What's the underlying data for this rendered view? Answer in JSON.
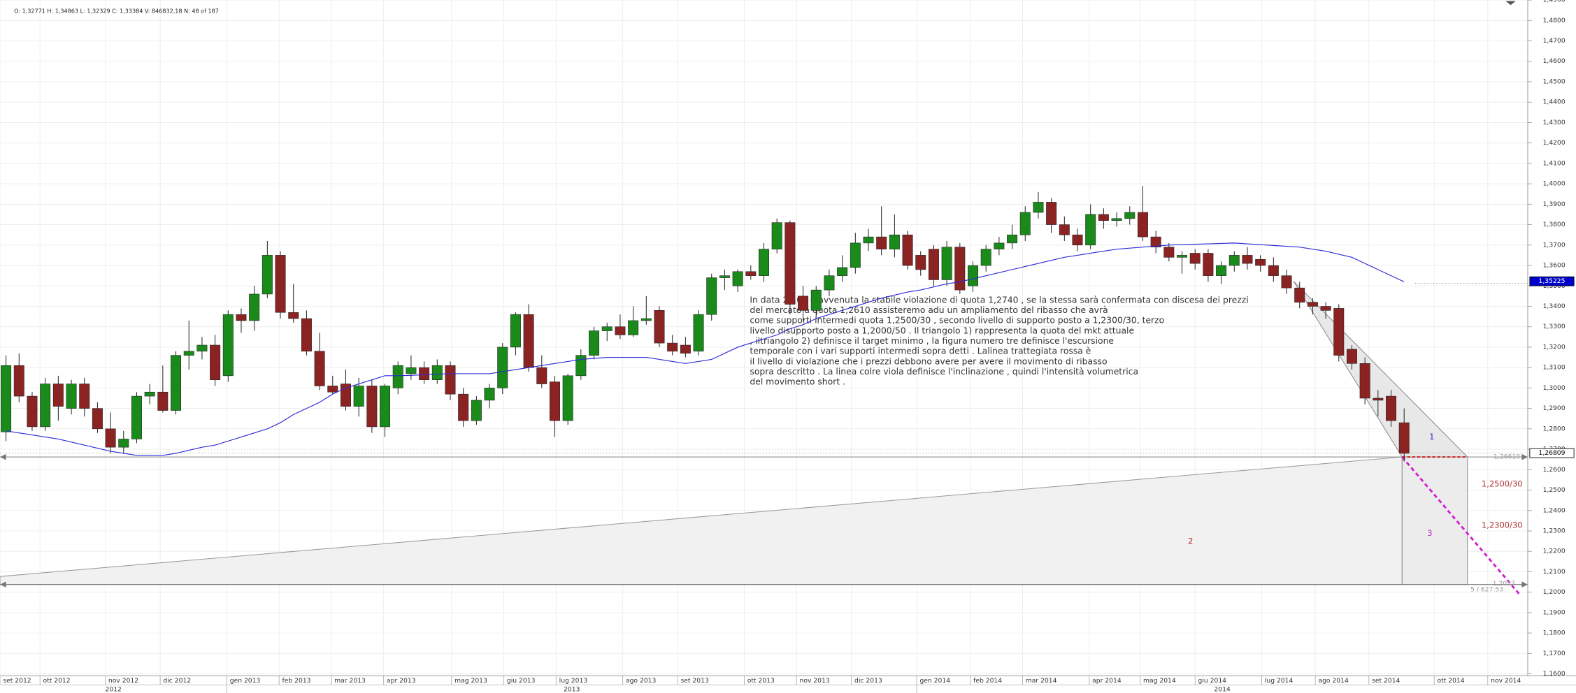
{
  "chart_data": {
    "type": "candlestick",
    "header": "O: 1,32771  H: 1,34863  L: 1,32329  C: 1,33384  V: 846832,18  N: 48 of 187",
    "up_color": "#1a8a1a",
    "down_color": "#8b2323",
    "grid": true,
    "ylim": [
      1.159,
      1.49
    ],
    "yticks": [
      {
        "value": 1.16,
        "label": "1,1600"
      },
      {
        "value": 1.17,
        "label": "1,1700"
      },
      {
        "value": 1.18,
        "label": "1,1800"
      },
      {
        "value": 1.19,
        "label": "1,1900"
      },
      {
        "value": 1.2,
        "label": "1,2000"
      },
      {
        "value": 1.21,
        "label": "1,2100"
      },
      {
        "value": 1.22,
        "label": "1,2200"
      },
      {
        "value": 1.23,
        "label": "1,2300"
      },
      {
        "value": 1.24,
        "label": "1,2400"
      },
      {
        "value": 1.25,
        "label": "1,2500"
      },
      {
        "value": 1.26,
        "label": "1,2600"
      },
      {
        "value": 1.27,
        "label": "1,2700"
      },
      {
        "value": 1.28,
        "label": "1,2800"
      },
      {
        "value": 1.29,
        "label": "1,2900"
      },
      {
        "value": 1.3,
        "label": "1,3000"
      },
      {
        "value": 1.31,
        "label": "1,3100"
      },
      {
        "value": 1.32,
        "label": "1,3200"
      },
      {
        "value": 1.33,
        "label": "1,3300"
      },
      {
        "value": 1.34,
        "label": "1,3400"
      },
      {
        "value": 1.35,
        "label": "1,3500"
      },
      {
        "value": 1.36,
        "label": "1,3600"
      },
      {
        "value": 1.37,
        "label": "1,3700"
      },
      {
        "value": 1.38,
        "label": "1,3800"
      },
      {
        "value": 1.39,
        "label": "1,3900"
      },
      {
        "value": 1.4,
        "label": "1,4000"
      },
      {
        "value": 1.41,
        "label": "1,4100"
      },
      {
        "value": 1.42,
        "label": "1,4200"
      },
      {
        "value": 1.43,
        "label": "1,4300"
      },
      {
        "value": 1.44,
        "label": "1,4400"
      },
      {
        "value": 1.45,
        "label": "1,4500"
      },
      {
        "value": 1.46,
        "label": "1,4600"
      },
      {
        "value": 1.47,
        "label": "1,4700"
      },
      {
        "value": 1.48,
        "label": "1,4800"
      },
      {
        "value": 1.49,
        "label": "1,4900"
      }
    ],
    "xlim": [
      -0.46,
      116.46
    ],
    "xticks": [
      {
        "value": -0.46,
        "label": "set 2012"
      },
      {
        "value": 2.6,
        "label": "ott 2012"
      },
      {
        "value": 7.6,
        "label": "nov 2012"
      },
      {
        "value": 11.8,
        "label": "dic 2012"
      },
      {
        "value": 16.9,
        "label": "gen 2013"
      },
      {
        "value": 20.9,
        "label": "feb 2013"
      },
      {
        "value": 24.9,
        "label": "mar 2013"
      },
      {
        "value": 28.9,
        "label": "apr 2013"
      },
      {
        "value": 34.1,
        "label": "mag 2013"
      },
      {
        "value": 38.1,
        "label": "giu 2013"
      },
      {
        "value": 42.1,
        "label": "lug 2013"
      },
      {
        "value": 47.2,
        "label": "ago 2013"
      },
      {
        "value": 51.4,
        "label": "set 2013"
      },
      {
        "value": 56.5,
        "label": "ott 2013"
      },
      {
        "value": 60.5,
        "label": "nov 2013"
      },
      {
        "value": 64.7,
        "label": "dic 2013"
      },
      {
        "value": 69.7,
        "label": "gen 2014"
      },
      {
        "value": 73.8,
        "label": "feb 2014"
      },
      {
        "value": 77.8,
        "label": "mar 2014"
      },
      {
        "value": 82.9,
        "label": "apr 2014"
      },
      {
        "value": 86.8,
        "label": "mag 2014"
      },
      {
        "value": 91,
        "label": "giu 2014"
      },
      {
        "value": 96.1,
        "label": "lug 2014"
      },
      {
        "value": 100.2,
        "label": "ago 2014"
      },
      {
        "value": 104.3,
        "label": "set 2014"
      },
      {
        "value": 109.3,
        "label": "ott 2014"
      },
      {
        "value": 113.4,
        "label": "nov 2014"
      }
    ],
    "year_labels": [
      "2012",
      "2013",
      "2014"
    ],
    "ohlc": [
      [
        1.2785,
        1.316,
        1.274,
        1.311
      ],
      [
        1.311,
        1.317,
        1.293,
        1.296
      ],
      [
        1.296,
        1.298,
        1.279,
        1.281
      ],
      [
        1.281,
        1.305,
        1.279,
        1.302
      ],
      [
        1.302,
        1.306,
        1.284,
        1.291
      ],
      [
        1.29,
        1.304,
        1.287,
        1.302
      ],
      [
        1.302,
        1.305,
        1.286,
        1.29
      ],
      [
        1.29,
        1.293,
        1.278,
        1.28
      ],
      [
        1.28,
        1.288,
        1.268,
        1.271
      ],
      [
        1.271,
        1.279,
        1.268,
        1.275
      ],
      [
        1.275,
        1.298,
        1.273,
        1.296
      ],
      [
        1.296,
        1.302,
        1.292,
        1.298
      ],
      [
        1.298,
        1.311,
        1.288,
        1.289
      ],
      [
        1.289,
        1.318,
        1.287,
        1.316
      ],
      [
        1.316,
        1.333,
        1.309,
        1.318
      ],
      [
        1.318,
        1.325,
        1.314,
        1.321
      ],
      [
        1.321,
        1.326,
        1.301,
        1.304
      ],
      [
        1.306,
        1.338,
        1.303,
        1.336
      ],
      [
        1.336,
        1.339,
        1.327,
        1.333
      ],
      [
        1.333,
        1.35,
        1.328,
        1.346
      ],
      [
        1.346,
        1.372,
        1.344,
        1.365
      ],
      [
        1.365,
        1.367,
        1.334,
        1.337
      ],
      [
        1.337,
        1.351,
        1.332,
        1.334
      ],
      [
        1.334,
        1.338,
        1.316,
        1.318
      ],
      [
        1.318,
        1.327,
        1.299,
        1.301
      ],
      [
        1.301,
        1.306,
        1.297,
        1.298
      ],
      [
        1.302,
        1.309,
        1.289,
        1.291
      ],
      [
        1.291,
        1.305,
        1.286,
        1.301
      ],
      [
        1.301,
        1.304,
        1.278,
        1.281
      ],
      [
        1.281,
        1.302,
        1.276,
        1.301
      ],
      [
        1.3,
        1.313,
        1.297,
        1.311
      ],
      [
        1.307,
        1.316,
        1.304,
        1.31
      ],
      [
        1.31,
        1.313,
        1.302,
        1.304
      ],
      [
        1.304,
        1.314,
        1.302,
        1.311
      ],
      [
        1.311,
        1.313,
        1.294,
        1.297
      ],
      [
        1.297,
        1.3,
        1.281,
        1.284
      ],
      [
        1.284,
        1.296,
        1.282,
        1.294
      ],
      [
        1.294,
        1.302,
        1.29,
        1.3
      ],
      [
        1.3,
        1.322,
        1.297,
        1.32
      ],
      [
        1.32,
        1.337,
        1.316,
        1.336
      ],
      [
        1.336,
        1.341,
        1.308,
        1.31
      ],
      [
        1.31,
        1.316,
        1.3,
        1.302
      ],
      [
        1.303,
        1.306,
        1.276,
        1.284
      ],
      [
        1.284,
        1.307,
        1.282,
        1.306
      ],
      [
        1.306,
        1.319,
        1.304,
        1.316
      ],
      [
        1.316,
        1.33,
        1.314,
        1.328
      ],
      [
        1.328,
        1.332,
        1.323,
        1.33
      ],
      [
        1.33,
        1.336,
        1.324,
        1.326
      ],
      [
        1.326,
        1.34,
        1.325,
        1.333
      ],
      [
        1.333,
        1.345,
        1.331,
        1.334
      ],
      [
        1.338,
        1.34,
        1.32,
        1.322
      ],
      [
        1.322,
        1.326,
        1.316,
        1.318
      ],
      [
        1.321,
        1.325,
        1.315,
        1.317
      ],
      [
        1.318,
        1.338,
        1.316,
        1.336
      ],
      [
        1.336,
        1.356,
        1.333,
        1.354
      ],
      [
        1.354,
        1.358,
        1.348,
        1.355
      ],
      [
        1.35,
        1.358,
        1.347,
        1.357
      ],
      [
        1.357,
        1.36,
        1.353,
        1.355
      ],
      [
        1.355,
        1.371,
        1.352,
        1.368
      ],
      [
        1.368,
        1.383,
        1.366,
        1.381
      ],
      [
        1.381,
        1.382,
        1.336,
        1.341
      ],
      [
        1.345,
        1.35,
        1.333,
        1.338
      ],
      [
        1.338,
        1.35,
        1.334,
        1.348
      ],
      [
        1.348,
        1.358,
        1.345,
        1.355
      ],
      [
        1.355,
        1.365,
        1.352,
        1.359
      ],
      [
        1.359,
        1.376,
        1.356,
        1.371
      ],
      [
        1.371,
        1.378,
        1.367,
        1.374
      ],
      [
        1.374,
        1.389,
        1.365,
        1.368
      ],
      [
        1.368,
        1.385,
        1.364,
        1.375
      ],
      [
        1.375,
        1.377,
        1.358,
        1.36
      ],
      [
        1.365,
        1.367,
        1.355,
        1.358
      ],
      [
        1.368,
        1.37,
        1.35,
        1.353
      ],
      [
        1.353,
        1.372,
        1.35,
        1.369
      ],
      [
        1.369,
        1.371,
        1.346,
        1.348
      ],
      [
        1.35,
        1.362,
        1.347,
        1.36
      ],
      [
        1.36,
        1.37,
        1.357,
        1.368
      ],
      [
        1.368,
        1.374,
        1.365,
        1.371
      ],
      [
        1.371,
        1.38,
        1.368,
        1.375
      ],
      [
        1.375,
        1.389,
        1.372,
        1.386
      ],
      [
        1.386,
        1.396,
        1.383,
        1.391
      ],
      [
        1.391,
        1.393,
        1.376,
        1.38
      ],
      [
        1.38,
        1.384,
        1.372,
        1.375
      ],
      [
        1.375,
        1.378,
        1.367,
        1.37
      ],
      [
        1.37,
        1.39,
        1.368,
        1.385
      ],
      [
        1.385,
        1.388,
        1.378,
        1.382
      ],
      [
        1.382,
        1.386,
        1.379,
        1.383
      ],
      [
        1.383,
        1.389,
        1.38,
        1.386
      ],
      [
        1.386,
        1.399,
        1.372,
        1.374
      ],
      [
        1.374,
        1.377,
        1.366,
        1.369
      ],
      [
        1.369,
        1.371,
        1.362,
        1.364
      ],
      [
        1.364,
        1.367,
        1.356,
        1.365
      ],
      [
        1.366,
        1.368,
        1.358,
        1.361
      ],
      [
        1.366,
        1.368,
        1.352,
        1.355
      ],
      [
        1.355,
        1.362,
        1.351,
        1.36
      ],
      [
        1.36,
        1.367,
        1.357,
        1.365
      ],
      [
        1.365,
        1.369,
        1.358,
        1.361
      ],
      [
        1.363,
        1.365,
        1.357,
        1.36
      ],
      [
        1.36,
        1.364,
        1.352,
        1.355
      ],
      [
        1.355,
        1.358,
        1.346,
        1.349
      ],
      [
        1.349,
        1.352,
        1.339,
        1.342
      ],
      [
        1.342,
        1.344,
        1.336,
        1.34
      ],
      [
        1.34,
        1.342,
        1.334,
        1.338
      ],
      [
        1.339,
        1.341,
        1.313,
        1.316
      ],
      [
        1.319,
        1.321,
        1.309,
        1.312
      ],
      [
        1.312,
        1.315,
        1.292,
        1.295
      ],
      [
        1.295,
        1.299,
        1.286,
        1.294
      ],
      [
        1.296,
        1.299,
        1.281,
        1.284
      ],
      [
        1.283,
        1.29,
        1.264,
        1.268
      ]
    ],
    "moving_average": {
      "color": "#2b2bd6",
      "values": [
        1.279,
        1.278,
        1.277,
        1.276,
        1.275,
        1.2735,
        1.272,
        1.2705,
        1.269,
        1.268,
        1.267,
        1.267,
        1.267,
        1.268,
        1.2695,
        1.271,
        1.272,
        1.274,
        1.276,
        1.278,
        1.28,
        1.283,
        1.287,
        1.29,
        1.293,
        1.297,
        1.3,
        1.302,
        1.304,
        1.306,
        1.306,
        1.3062,
        1.3065,
        1.3068,
        1.307,
        1.307,
        1.307,
        1.307,
        1.308,
        1.309,
        1.31,
        1.311,
        1.312,
        1.313,
        1.314,
        1.3145,
        1.315,
        1.315,
        1.315,
        1.315,
        1.314,
        1.313,
        1.312,
        1.313,
        1.314,
        1.317,
        1.32,
        1.322,
        1.324,
        1.326,
        1.329,
        1.331,
        1.334,
        1.336,
        1.338,
        1.34,
        1.342,
        1.344,
        1.3455,
        1.347,
        1.348,
        1.3495,
        1.351,
        1.352,
        1.3535,
        1.355,
        1.3565,
        1.358,
        1.3595,
        1.361,
        1.3625,
        1.364,
        1.365,
        1.366,
        1.367,
        1.368,
        1.3685,
        1.369,
        1.3695,
        1.37,
        1.3702,
        1.3704,
        1.3706,
        1.3708,
        1.371,
        1.3706,
        1.3702,
        1.3698,
        1.3694,
        1.369,
        1.368,
        1.367,
        1.3655,
        1.364,
        1.361,
        1.358,
        1.355,
        1.352
      ]
    },
    "price_labels": [
      {
        "value": 1.35225,
        "label": "1,35225",
        "color": "#0000cc"
      },
      {
        "value": 1.26809,
        "label": "1,26809",
        "color": "#ffffff"
      }
    ],
    "annotations": {
      "triangle_1": "1",
      "triangle_2": "2",
      "figure_3": "3",
      "support_1": "1,2500/30",
      "support_2": "1,2300/30",
      "level": "1,26610",
      "bottom_level": "1,2037",
      "stats": "5 / 627:53"
    },
    "notes": [
      "In data 25.09 è avvenuta la stabile violazione di quota 1,2740 , se la stessa sarà confermata con discesa dei prezzi",
      "del mercato a quota 1,2610 assisteremo adu un ampliamento del ribasso che avrà",
      "come supporti intermedi quota 1,2500/30 , secondo livello di supporto posto a 1,2300/30, terzo",
      "livello disupporto posto a 1,2000/50 . Il triangolo 1) rappresenta la quota del mkt attuale",
      ", iltriangolo 2) definisce il target minimo , la figura numero tre definisce l'escursione",
      "temporale con i vari supporti intermedi sopra detti . Lalinea trattegiata rossa è",
      "il livello di violazione che i prezzi debbono avere per avere il movimento di ribasso",
      "sopra descritto . La linea colre viola definisce l'inclinazione , quindi l'intensità volumetrica",
      "del movimento short ."
    ]
  }
}
